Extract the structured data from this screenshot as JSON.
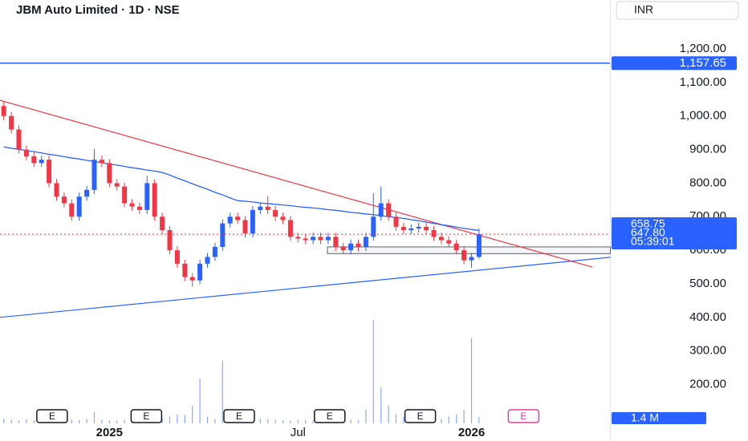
{
  "chart_data": {
    "type": "candlestick",
    "title": "JBM Auto Limited · 1D · NSE",
    "currency": "INR",
    "categories": [
      null,
      null,
      null,
      null,
      null,
      null,
      null,
      null,
      null,
      null,
      null,
      null,
      null,
      null,
      "2025",
      null,
      null,
      null,
      null,
      null,
      null,
      null,
      null,
      null,
      null,
      null,
      null,
      null,
      null,
      null,
      null,
      null,
      null,
      null,
      null,
      null,
      null,
      null,
      null,
      "Jul",
      null,
      null,
      null,
      null,
      null,
      null,
      null,
      null,
      null,
      null,
      null,
      null,
      null,
      null,
      null,
      null,
      null,
      null,
      null,
      null,
      null,
      null,
      "2026",
      null
    ],
    "open": [
      1030,
      1000,
      960,
      900,
      880,
      860,
      870,
      800,
      760,
      740,
      700,
      760,
      780,
      870,
      860,
      800,
      790,
      740,
      730,
      720,
      800,
      700,
      660,
      600,
      560,
      520,
      510,
      560,
      580,
      610,
      680,
      700,
      690,
      650,
      720,
      730,
      720,
      700,
      690,
      640,
      635,
      630,
      640,
      630,
      640,
      610,
      600,
      620,
      610,
      640,
      700,
      740,
      700,
      670,
      660,
      665,
      670,
      660,
      640,
      630,
      620,
      600,
      570,
      580
    ],
    "high": [
      1042,
      1012,
      972,
      912,
      892,
      882,
      882,
      812,
      772,
      752,
      772,
      792,
      902,
      882,
      872,
      812,
      802,
      752,
      742,
      822,
      812,
      712,
      672,
      612,
      572,
      532,
      572,
      592,
      622,
      692,
      712,
      712,
      702,
      732,
      742,
      762,
      732,
      712,
      702,
      652,
      647,
      652,
      652,
      652,
      652,
      622,
      632,
      632,
      652,
      770,
      790,
      752,
      712,
      682,
      677,
      682,
      682,
      672,
      652,
      642,
      632,
      612,
      592,
      665
    ],
    "low": [
      988,
      948,
      888,
      868,
      848,
      848,
      788,
      748,
      728,
      688,
      688,
      748,
      768,
      848,
      788,
      778,
      728,
      718,
      708,
      708,
      688,
      648,
      588,
      548,
      508,
      492,
      498,
      548,
      568,
      598,
      668,
      678,
      638,
      638,
      708,
      708,
      688,
      678,
      628,
      623,
      618,
      618,
      618,
      618,
      598,
      588,
      588,
      598,
      598,
      628,
      688,
      688,
      658,
      648,
      648,
      653,
      648,
      628,
      618,
      608,
      588,
      558,
      548,
      575
    ],
    "close": [
      1000,
      960,
      900,
      880,
      860,
      870,
      800,
      760,
      740,
      700,
      760,
      780,
      870,
      860,
      800,
      790,
      740,
      730,
      720,
      800,
      700,
      660,
      600,
      560,
      520,
      510,
      560,
      580,
      610,
      680,
      700,
      690,
      650,
      720,
      730,
      720,
      700,
      690,
      640,
      635,
      630,
      640,
      630,
      640,
      610,
      600,
      620,
      610,
      640,
      700,
      740,
      700,
      670,
      660,
      665,
      670,
      660,
      640,
      630,
      620,
      600,
      570,
      580,
      647.8
    ],
    "last_close_label": "647.80",
    "countdown": "05:39:01",
    "up_color": "#2962ff",
    "down_color": "#f23645",
    "moving_average": {
      "color": "#2962ff",
      "values": [
        908,
        904,
        901,
        897,
        894,
        890,
        886,
        883,
        879,
        875,
        872,
        868,
        865,
        861,
        857,
        854,
        850,
        846,
        843,
        839,
        836,
        832,
        824,
        815,
        807,
        798,
        790,
        782,
        773,
        765,
        756,
        748,
        746,
        744,
        741,
        739,
        737,
        735,
        733,
        730,
        728,
        726,
        724,
        721,
        719,
        716,
        713,
        711,
        708,
        706,
        703,
        700,
        698,
        695,
        691,
        688,
        684,
        680,
        676,
        673,
        669,
        665,
        662,
        658.75
      ]
    },
    "hline": {
      "value": 1157.65,
      "label": "1,157.65",
      "color": "#2962ff"
    },
    "trendlines": [
      {
        "color": "#f23645",
        "x": [
          -0.5,
          78
        ],
        "y": [
          1047,
          550
        ]
      },
      {
        "color": "#2962ff",
        "x": [
          -0.5,
          80.4
        ],
        "y": [
          400,
          579
        ]
      }
    ],
    "zone": {
      "x": [
        42.9,
        80.4
      ],
      "y": [
        590,
        610
      ]
    },
    "volume": {
      "color": "#2962ff",
      "ylim": [
        0,
        30
      ],
      "values": [
        1,
        0.8,
        0.7,
        0.9,
        0.6,
        0.8,
        0.7,
        3,
        0.6,
        0.8,
        0.7,
        0.9,
        2.5,
        0.8,
        0.7,
        0.6,
        0.8,
        0.9,
        0.7,
        2,
        0.8,
        1.2,
        1.5,
        2,
        1.8,
        4,
        10,
        1.5,
        1,
        14,
        1.2,
        0.9,
        0.8,
        1.5,
        1,
        0.9,
        0.8,
        0.7,
        0.6,
        0.8,
        0.7,
        0.6,
        0.8,
        1.2,
        0.7,
        0.8,
        0.9,
        0.7,
        3,
        23,
        8,
        4,
        2,
        1.5,
        1,
        0.9,
        1.2,
        0.8,
        1,
        1.5,
        2,
        3,
        19,
        1.4
      ],
      "last_label": "1.4 M"
    },
    "earnings": [
      {
        "x": 6.4,
        "label": "E"
      },
      {
        "x": 18.9,
        "label": "E"
      },
      {
        "x": 31.2,
        "label": "E"
      },
      {
        "x": 43.2,
        "label": "E"
      },
      {
        "x": 55.2,
        "label": "E"
      },
      {
        "x": 68.9,
        "label": "E"
      }
    ],
    "ylim": [
      84,
      1346
    ],
    "yticks": [
      {
        "value": 200,
        "label": "200.00"
      },
      {
        "value": 300,
        "label": "300.00"
      },
      {
        "value": 400,
        "label": "400.00"
      },
      {
        "value": 500,
        "label": "500.00"
      },
      {
        "value": 600,
        "label": "600.00"
      },
      {
        "value": 700,
        "label": "700.00"
      },
      {
        "value": 800,
        "label": "800.00"
      },
      {
        "value": 900,
        "label": "900.00"
      },
      {
        "value": 1000,
        "label": "1,000.00"
      },
      {
        "value": 1100,
        "label": "1,100.00"
      },
      {
        "value": 1200,
        "label": "1,200.00"
      }
    ]
  }
}
